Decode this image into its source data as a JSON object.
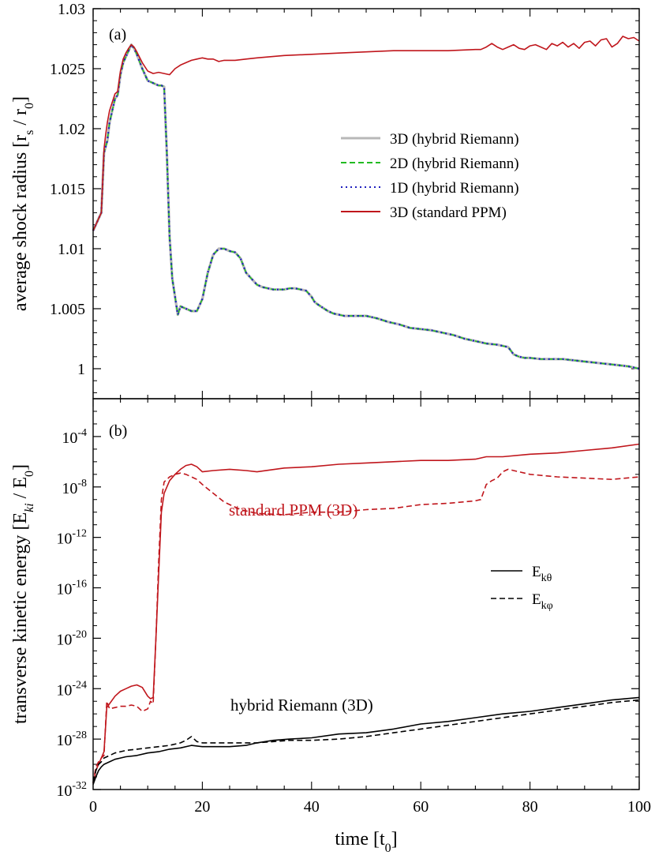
{
  "chart_data": [
    {
      "type": "line",
      "panel_label": "(a)",
      "xlabel": "time [t0]",
      "ylabel": "average shock radius [rs / r0]",
      "xlim": [
        0,
        100
      ],
      "ylim": [
        0.9975,
        1.03
      ],
      "xticks": [
        0,
        20,
        40,
        60,
        80,
        100
      ],
      "yticks": [
        1,
        1.005,
        1.01,
        1.015,
        1.02,
        1.025,
        1.03
      ],
      "ytick_labels": [
        "1",
        "1.005",
        "1.01",
        "1.015",
        "1.02",
        "1.025",
        "1.03"
      ],
      "legend_position": "center-right",
      "series": [
        {
          "name": "3D (hybrid Riemann)",
          "color": "#b8b8b8",
          "style": "solid",
          "x": [
            0,
            0.5,
            1,
            1.5,
            2,
            2.3,
            2.6,
            3,
            3.5,
            4,
            4.5,
            5,
            5.5,
            6,
            6.5,
            7,
            7.5,
            8,
            9,
            10,
            11,
            11.5,
            12,
            12.5,
            13,
            13.5,
            14,
            14.5,
            15,
            15.5,
            16,
            16.5,
            17,
            18,
            19,
            20,
            21,
            22,
            23,
            24,
            25,
            26,
            27,
            28,
            29,
            30,
            31,
            32,
            33,
            34,
            35,
            36,
            37,
            38,
            39,
            40,
            40.5,
            41,
            42,
            43,
            44,
            45,
            46,
            47,
            48,
            49,
            50,
            52,
            54,
            56,
            58,
            60,
            62,
            64,
            66,
            68,
            70,
            72,
            74,
            75,
            76,
            76.5,
            77,
            78,
            79,
            80,
            82,
            84,
            85,
            86,
            88,
            90,
            92,
            94,
            96,
            98,
            100
          ],
          "y": [
            1.0115,
            1.012,
            1.0125,
            1.013,
            1.018,
            1.0185,
            1.019,
            1.0205,
            1.0215,
            1.0225,
            1.0228,
            1.0245,
            1.0255,
            1.026,
            1.0265,
            1.027,
            1.0267,
            1.0262,
            1.025,
            1.024,
            1.0238,
            1.0237,
            1.0236,
            1.0236,
            1.0235,
            1.018,
            1.011,
            1.0075,
            1.006,
            1.0045,
            1.0052,
            1.0051,
            1.005,
            1.0048,
            1.0048,
            1.0058,
            1.008,
            1.0095,
            1.01,
            1.01,
            1.0098,
            1.0097,
            1.0092,
            1.008,
            1.0075,
            1.007,
            1.0068,
            1.0067,
            1.0066,
            1.0066,
            1.0066,
            1.0067,
            1.0067,
            1.0066,
            1.0065,
            1.006,
            1.0056,
            1.0054,
            1.0051,
            1.0048,
            1.0046,
            1.0045,
            1.0044,
            1.0044,
            1.0044,
            1.0044,
            1.0044,
            1.0042,
            1.0039,
            1.0037,
            1.0034,
            1.0033,
            1.0032,
            1.003,
            1.0028,
            1.0025,
            1.0023,
            1.0021,
            1.002,
            1.0019,
            1.0018,
            1.0015,
            1.0012,
            1.001,
            1.0009,
            1.0009,
            1.0008,
            1.0008,
            1.0008,
            1.0008,
            1.0007,
            1.0006,
            1.0005,
            1.0004,
            1.0003,
            1.0002,
            1.0
          ]
        },
        {
          "name": "2D (hybrid Riemann)",
          "color": "#22bb22",
          "style": "dashed",
          "same_as": "3D (hybrid Riemann)"
        },
        {
          "name": "1D (hybrid Riemann)",
          "color": "#1f1fbf",
          "style": "dotted",
          "same_as": "3D (hybrid Riemann)"
        },
        {
          "name": "3D (standard PPM)",
          "color": "#c0161c",
          "style": "solid",
          "x": [
            0,
            0.5,
            1,
            1.5,
            2,
            2.3,
            2.6,
            3,
            3.5,
            4,
            4.5,
            5,
            5.5,
            6,
            6.5,
            7,
            7.5,
            8,
            9,
            10,
            11,
            12,
            13,
            14,
            15,
            16,
            17,
            18,
            19,
            20,
            21,
            22,
            23,
            24,
            26,
            28,
            30,
            35,
            40,
            45,
            50,
            55,
            60,
            65,
            70,
            71,
            72,
            73,
            74,
            75,
            76,
            77,
            78,
            79,
            80,
            81,
            82,
            83,
            84,
            85,
            86,
            87,
            88,
            89,
            90,
            91,
            92,
            93,
            94,
            95,
            96,
            97,
            98,
            99,
            100
          ],
          "y": [
            1.0115,
            1.012,
            1.0125,
            1.013,
            1.0183,
            1.0195,
            1.0205,
            1.0215,
            1.0222,
            1.0229,
            1.0231,
            1.0248,
            1.0258,
            1.0263,
            1.0267,
            1.027,
            1.0268,
            1.0264,
            1.0255,
            1.0248,
            1.0246,
            1.0247,
            1.0246,
            1.0245,
            1.025,
            1.0253,
            1.0255,
            1.0257,
            1.0258,
            1.0259,
            1.0258,
            1.0258,
            1.0256,
            1.0257,
            1.0257,
            1.0258,
            1.0259,
            1.0261,
            1.0262,
            1.0263,
            1.0264,
            1.0265,
            1.0265,
            1.0265,
            1.0266,
            1.0266,
            1.0268,
            1.0271,
            1.0268,
            1.0266,
            1.0268,
            1.027,
            1.0267,
            1.0266,
            1.0269,
            1.027,
            1.0268,
            1.0266,
            1.0271,
            1.0269,
            1.0272,
            1.0268,
            1.0271,
            1.0267,
            1.0272,
            1.0273,
            1.0269,
            1.0274,
            1.0275,
            1.0268,
            1.0271,
            1.0277,
            1.0275,
            1.0276,
            1.0273
          ]
        }
      ]
    },
    {
      "type": "line",
      "panel_label": "(b)",
      "xlabel": "time [t0]",
      "ylabel": "transverse kinetic energy [Eki / E0]",
      "y_scale": "log",
      "ylim_log10": [
        -32,
        -1
      ],
      "xlim": [
        0,
        100
      ],
      "xticks": [
        0,
        20,
        40,
        60,
        80,
        100
      ],
      "ytick_exponents": [
        -32,
        -28,
        -24,
        -20,
        -16,
        -12,
        -8,
        -4
      ],
      "legend_position": "center-right",
      "annotations": [
        {
          "text": "standard PPM (3D)",
          "color": "#c0161c"
        },
        {
          "text": "hybrid Riemann (3D)",
          "color": "#000000"
        }
      ],
      "series": [
        {
          "name": "Ekθ",
          "group": "standard PPM (3D)",
          "color": "#c0161c",
          "style": "solid",
          "x": [
            0,
            0.5,
            1,
            1.5,
            2,
            2.5,
            3,
            4,
            5,
            6,
            7,
            8,
            9,
            10,
            10.5,
            11,
            11.5,
            12,
            12.5,
            13,
            14,
            15,
            16,
            17,
            18,
            19,
            20,
            22,
            25,
            28,
            30,
            35,
            40,
            45,
            50,
            55,
            60,
            65,
            70,
            72,
            75,
            80,
            85,
            90,
            95,
            100
          ],
          "y_log10": [
            -31.5,
            -30.5,
            -30,
            -29.5,
            -29,
            -25.5,
            -25.2,
            -24.6,
            -24.2,
            -24.0,
            -23.8,
            -23.7,
            -23.9,
            -24.6,
            -24.8,
            -24.7,
            -20,
            -15,
            -10,
            -8.5,
            -7.5,
            -7.0,
            -6.6,
            -6.3,
            -6.2,
            -6.4,
            -6.8,
            -6.7,
            -6.6,
            -6.7,
            -6.8,
            -6.5,
            -6.4,
            -6.2,
            -6.1,
            -6.0,
            -5.9,
            -5.9,
            -5.8,
            -5.6,
            -5.6,
            -5.4,
            -5.3,
            -5.1,
            -4.9,
            -4.6
          ]
        },
        {
          "name": "Ekφ",
          "group": "standard PPM (3D)",
          "color": "#c0161c",
          "style": "dashed",
          "x": [
            0,
            0.5,
            1,
            1.5,
            2,
            2.5,
            3,
            4,
            5,
            6,
            7,
            8,
            9,
            10,
            10.5,
            11,
            11.5,
            12,
            12.5,
            13,
            14,
            15,
            16,
            17,
            18,
            19,
            20,
            22,
            24,
            27,
            30,
            35,
            40,
            45,
            50,
            55,
            60,
            65,
            70,
            71,
            72,
            73,
            74,
            75,
            76,
            77,
            78,
            80,
            85,
            90,
            95,
            100
          ],
          "y_log10": [
            -31.5,
            -30.2,
            -29.8,
            -29.5,
            -29.3,
            -25.0,
            -25.6,
            -25.5,
            -25.4,
            -25.4,
            -25.3,
            -25.4,
            -25.8,
            -25.6,
            -25.0,
            -25.2,
            -20,
            -14,
            -9,
            -7.6,
            -7.2,
            -7.0,
            -6.9,
            -7.0,
            -7.2,
            -7.4,
            -7.8,
            -8.5,
            -9.2,
            -9.8,
            -10.1,
            -10.2,
            -10.0,
            -10.0,
            -9.8,
            -9.7,
            -9.4,
            -9.3,
            -9.1,
            -9.0,
            -7.8,
            -7.5,
            -7.3,
            -6.8,
            -6.6,
            -6.7,
            -6.8,
            -7.0,
            -7.2,
            -7.3,
            -7.4,
            -7.2
          ]
        },
        {
          "name": "Ekθ",
          "group": "hybrid Riemann (3D)",
          "color": "#000000",
          "style": "solid",
          "x": [
            0,
            0.5,
            1,
            1.5,
            2,
            3,
            4,
            5,
            6,
            8,
            10,
            12,
            14,
            16,
            18,
            20,
            22,
            25,
            28,
            30,
            33,
            36,
            40,
            45,
            50,
            55,
            60,
            65,
            70,
            75,
            80,
            85,
            90,
            95,
            100
          ],
          "y_log10": [
            -31.6,
            -31.0,
            -30.5,
            -30.2,
            -30.0,
            -29.8,
            -29.6,
            -29.5,
            -29.4,
            -29.3,
            -29.1,
            -29.0,
            -28.8,
            -28.7,
            -28.5,
            -28.6,
            -28.6,
            -28.6,
            -28.5,
            -28.3,
            -28.1,
            -28.0,
            -27.9,
            -27.6,
            -27.5,
            -27.2,
            -26.8,
            -26.6,
            -26.3,
            -26.0,
            -25.8,
            -25.5,
            -25.2,
            -24.9,
            -24.7
          ]
        },
        {
          "name": "Ekφ",
          "group": "hybrid Riemann (3D)",
          "color": "#000000",
          "style": "dashed",
          "x": [
            0,
            0.5,
            1,
            1.5,
            2,
            3,
            4,
            5,
            6,
            8,
            10,
            12,
            14,
            16,
            17,
            18,
            19,
            20,
            22,
            25,
            28,
            30,
            33,
            36,
            40,
            45,
            50,
            55,
            60,
            65,
            70,
            75,
            80,
            85,
            90,
            95,
            100
          ],
          "y_log10": [
            -31.4,
            -30.5,
            -30.0,
            -29.8,
            -29.5,
            -29.3,
            -29.1,
            -29.0,
            -28.9,
            -28.8,
            -28.7,
            -28.6,
            -28.5,
            -28.3,
            -28.1,
            -27.8,
            -28.2,
            -28.3,
            -28.3,
            -28.3,
            -28.3,
            -28.3,
            -28.2,
            -28.1,
            -28.1,
            -28.0,
            -27.8,
            -27.5,
            -27.2,
            -26.9,
            -26.6,
            -26.3,
            -26.0,
            -25.7,
            -25.4,
            -25.1,
            -24.9
          ]
        }
      ]
    }
  ],
  "axes_text": {
    "top_ylabel_main": "average shock radius [r",
    "top_ylabel_sub1": "s",
    "top_ylabel_mid": " / r",
    "top_ylabel_sub2": "0",
    "top_ylabel_end": "]",
    "bottom_ylabel_main": "transverse kinetic energy [E",
    "bottom_ylabel_sub1": "ki",
    "bottom_ylabel_mid": " / E",
    "bottom_ylabel_sub2": "0",
    "bottom_ylabel_end": "]",
    "xlabel_main": "time [t",
    "xlabel_sub": "0",
    "xlabel_end": "]",
    "log_base": "10",
    "legend_b_theta_main": "E",
    "legend_b_theta_sub": "kθ",
    "legend_b_phi_main": "E",
    "legend_b_phi_sub": "kφ"
  }
}
